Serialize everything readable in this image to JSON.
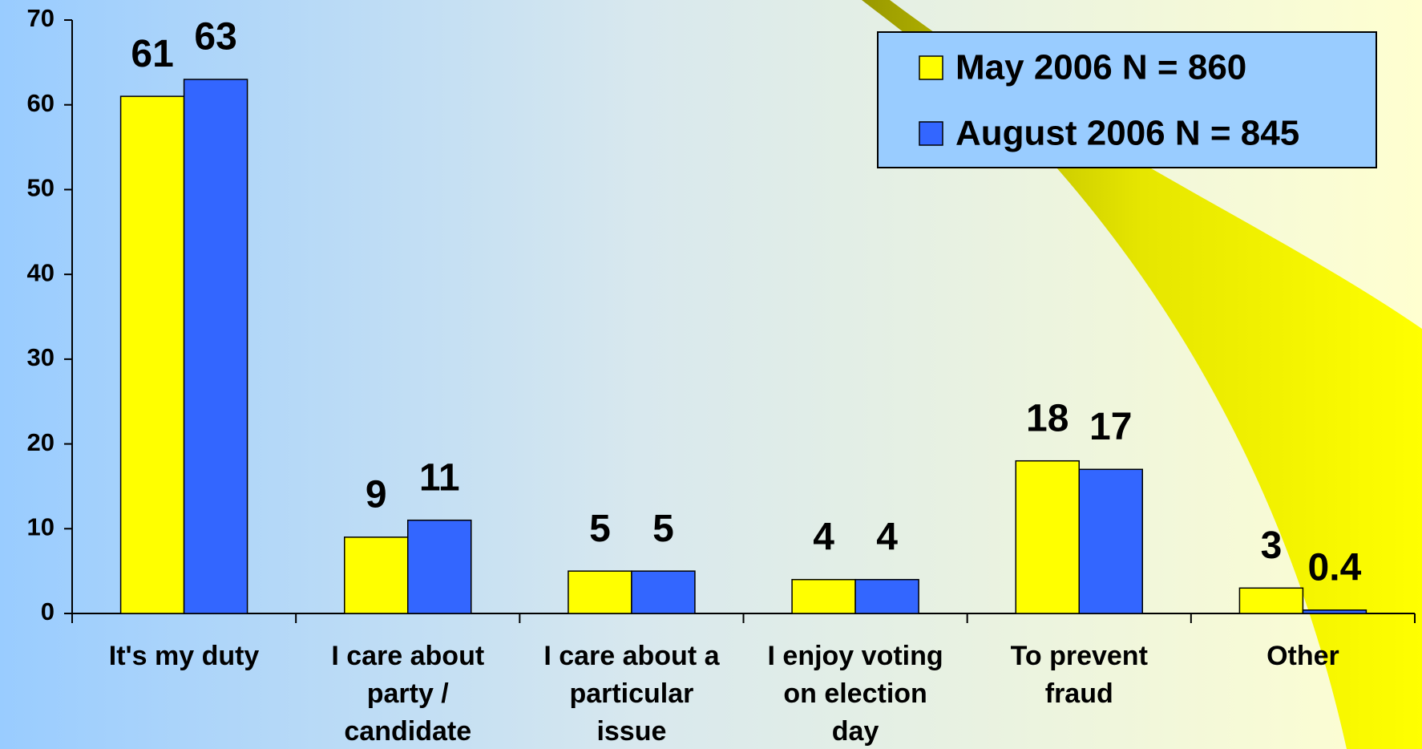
{
  "chart_data": {
    "type": "bar",
    "categories": [
      "It's my duty",
      "I care about\nparty /\ncandidate",
      "I care about a\nparticular\nissue",
      "I enjoy voting\non election\nday",
      "To prevent\nfraud",
      "Other"
    ],
    "series": [
      {
        "name": "May 2006 N = 860",
        "color": "#ffff00",
        "values": [
          61,
          9,
          5,
          4,
          18,
          3
        ]
      },
      {
        "name": "August 2006 N = 845",
        "color": "#3366ff",
        "values": [
          63,
          11,
          5,
          4,
          17,
          0.4
        ]
      }
    ],
    "ylim": [
      0,
      70
    ],
    "yticks": [
      0,
      10,
      20,
      30,
      40,
      50,
      60,
      70
    ],
    "legend": "upper right"
  }
}
